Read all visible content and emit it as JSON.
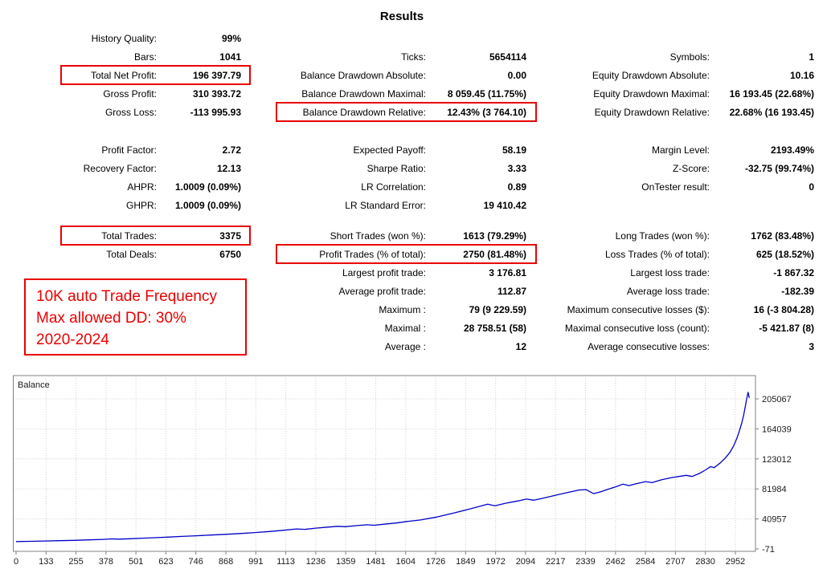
{
  "title": "Results",
  "colors": {
    "accent_red": "#ea0000",
    "curve_blue": "#0000c8",
    "grid": "#cfcfcf",
    "chart_border": "#808080",
    "axis_text": "#1a1a1a"
  },
  "stats": {
    "left": {
      "g1": [
        {
          "label": "History Quality:",
          "value": "99%"
        },
        {
          "label": "Bars:",
          "value": "1041"
        },
        {
          "label": "Total Net Profit:",
          "value": "196 397.79",
          "box": "narrow"
        },
        {
          "label": "Gross Profit:",
          "value": "310 393.72"
        },
        {
          "label": "Gross Loss:",
          "value": "-113 995.93"
        }
      ],
      "g2": [
        {
          "label": "Profit Factor:",
          "value": "2.72"
        },
        {
          "label": "Recovery Factor:",
          "value": "12.13"
        },
        {
          "label": "AHPR:",
          "value": "1.0009 (0.09%)"
        },
        {
          "label": "GHPR:",
          "value": "1.0009 (0.09%)"
        }
      ],
      "g3": [
        {
          "label": "Total Trades:",
          "value": "3375",
          "box": "narrow"
        },
        {
          "label": "Total Deals:",
          "value": "6750"
        }
      ]
    },
    "middle": {
      "g1": [
        {
          "label": "Ticks:",
          "value": "5654114"
        },
        {
          "label": "Balance Drawdown Absolute:",
          "value": "0.00"
        },
        {
          "label": "Balance Drawdown Maximal:",
          "value": "8 059.45 (11.75%)"
        },
        {
          "label": "Balance Drawdown Relative:",
          "value": "12.43% (3 764.10)",
          "box": "wide"
        }
      ],
      "g2": [
        {
          "label": "Expected Payoff:",
          "value": "58.19"
        },
        {
          "label": "Sharpe Ratio:",
          "value": "3.33"
        },
        {
          "label": "LR Correlation:",
          "value": "0.89"
        },
        {
          "label": "LR Standard Error:",
          "value": "19 410.42"
        }
      ],
      "g3": [
        {
          "label": "Short Trades (won %):",
          "value": "1613 (79.29%)"
        },
        {
          "label": "Profit Trades (% of total):",
          "value": "2750 (81.48%)",
          "box": "wide"
        },
        {
          "label": "Largest profit trade:",
          "value": "3 176.81"
        },
        {
          "label": "Average profit trade:",
          "value": "112.87"
        },
        {
          "label": "Maximum :",
          "value": "79 (9 229.59)"
        },
        {
          "label": "Maximal :",
          "value": "28 758.51 (58)"
        },
        {
          "label": "Average :",
          "value": "12"
        }
      ]
    },
    "right": {
      "g1": [
        {
          "label": "Symbols:",
          "value": "1"
        },
        {
          "label": "Equity Drawdown Absolute:",
          "value": "10.16"
        },
        {
          "label": "Equity Drawdown Maximal:",
          "value": "16 193.45 (22.68%)"
        },
        {
          "label": "Equity Drawdown Relative:",
          "value": "22.68% (16 193.45)"
        }
      ],
      "g2": [
        {
          "label": "Margin Level:",
          "value": "2193.49%"
        },
        {
          "label": "Z-Score:",
          "value": "-32.75 (99.74%)"
        },
        {
          "label": "OnTester result:",
          "value": "0"
        }
      ],
      "g3": [
        {
          "label": "Long Trades (won %):",
          "value": "1762 (83.48%)"
        },
        {
          "label": "Loss Trades (% of total):",
          "value": "625 (18.52%)"
        },
        {
          "label": "Largest loss trade:",
          "value": "-1 867.32"
        },
        {
          "label": "Average loss trade:",
          "value": "-182.39"
        },
        {
          "label": "Maximum consecutive losses ($):",
          "value": "16 (-3 804.28)"
        },
        {
          "label": "Maximal consecutive loss (count):",
          "value": "-5 421.87 (8)"
        },
        {
          "label": "Average consecutive losses:",
          "value": "3"
        }
      ]
    }
  },
  "annotation": {
    "lines": [
      "10K auto Trade Frequency",
      "Max allowed DD: 30%",
      "2020-2024"
    ]
  },
  "chart_data": {
    "type": "line",
    "title": "Balance",
    "legend_label": "Balance",
    "legend_position": "top-left",
    "grid": true,
    "xlabel": "",
    "ylabel": "",
    "xlim": [
      0,
      3009
    ],
    "ylim": [
      -71,
      238000
    ],
    "x_ticks": [
      0,
      133,
      255,
      378,
      501,
      623,
      746,
      868,
      991,
      1113,
      1236,
      1359,
      1481,
      1604,
      1726,
      1849,
      1972,
      2094,
      2217,
      2339,
      2462,
      2584,
      2707,
      2830,
      2952
    ],
    "y_ticks": [
      -71,
      40957,
      81984,
      123012,
      164039,
      205067
    ],
    "series": [
      {
        "name": "Balance",
        "points": [
          [
            0,
            10000
          ],
          [
            60,
            10400
          ],
          [
            120,
            10800
          ],
          [
            180,
            11200
          ],
          [
            240,
            11700
          ],
          [
            300,
            12300
          ],
          [
            360,
            13000
          ],
          [
            390,
            13600
          ],
          [
            420,
            13300
          ],
          [
            470,
            13900
          ],
          [
            520,
            14600
          ],
          [
            570,
            15300
          ],
          [
            620,
            16100
          ],
          [
            680,
            17000
          ],
          [
            740,
            17900
          ],
          [
            800,
            18900
          ],
          [
            860,
            19900
          ],
          [
            920,
            21000
          ],
          [
            980,
            22300
          ],
          [
            1040,
            23700
          ],
          [
            1100,
            25500
          ],
          [
            1150,
            27200
          ],
          [
            1185,
            26700
          ],
          [
            1230,
            28300
          ],
          [
            1280,
            29800
          ],
          [
            1320,
            30900
          ],
          [
            1350,
            30300
          ],
          [
            1400,
            31900
          ],
          [
            1440,
            32900
          ],
          [
            1470,
            32300
          ],
          [
            1510,
            33700
          ],
          [
            1560,
            35400
          ],
          [
            1604,
            37400
          ],
          [
            1660,
            39500
          ],
          [
            1726,
            43500
          ],
          [
            1790,
            48500
          ],
          [
            1849,
            53500
          ],
          [
            1900,
            58000
          ],
          [
            1935,
            61000
          ],
          [
            1965,
            59000
          ],
          [
            2010,
            62500
          ],
          [
            2060,
            65500
          ],
          [
            2094,
            68000
          ],
          [
            2125,
            66500
          ],
          [
            2160,
            69000
          ],
          [
            2217,
            73500
          ],
          [
            2270,
            77500
          ],
          [
            2310,
            80500
          ],
          [
            2339,
            81000
          ],
          [
            2370,
            75500
          ],
          [
            2400,
            78000
          ],
          [
            2430,
            81500
          ],
          [
            2462,
            85000
          ],
          [
            2490,
            88500
          ],
          [
            2515,
            86500
          ],
          [
            2545,
            89000
          ],
          [
            2584,
            92000
          ],
          [
            2610,
            90500
          ],
          [
            2650,
            94500
          ],
          [
            2690,
            97500
          ],
          [
            2720,
            99000
          ],
          [
            2750,
            100500
          ],
          [
            2775,
            99000
          ],
          [
            2807,
            103500
          ],
          [
            2830,
            108000
          ],
          [
            2850,
            112500
          ],
          [
            2865,
            111000
          ],
          [
            2890,
            117500
          ],
          [
            2910,
            124000
          ],
          [
            2930,
            132000
          ],
          [
            2945,
            141000
          ],
          [
            2958,
            151000
          ],
          [
            2968,
            161000
          ],
          [
            2978,
            172000
          ],
          [
            2986,
            183000
          ],
          [
            2993,
            195000
          ],
          [
            2999,
            206000
          ],
          [
            3004,
            213900
          ],
          [
            3009,
            206400
          ]
        ]
      }
    ]
  }
}
